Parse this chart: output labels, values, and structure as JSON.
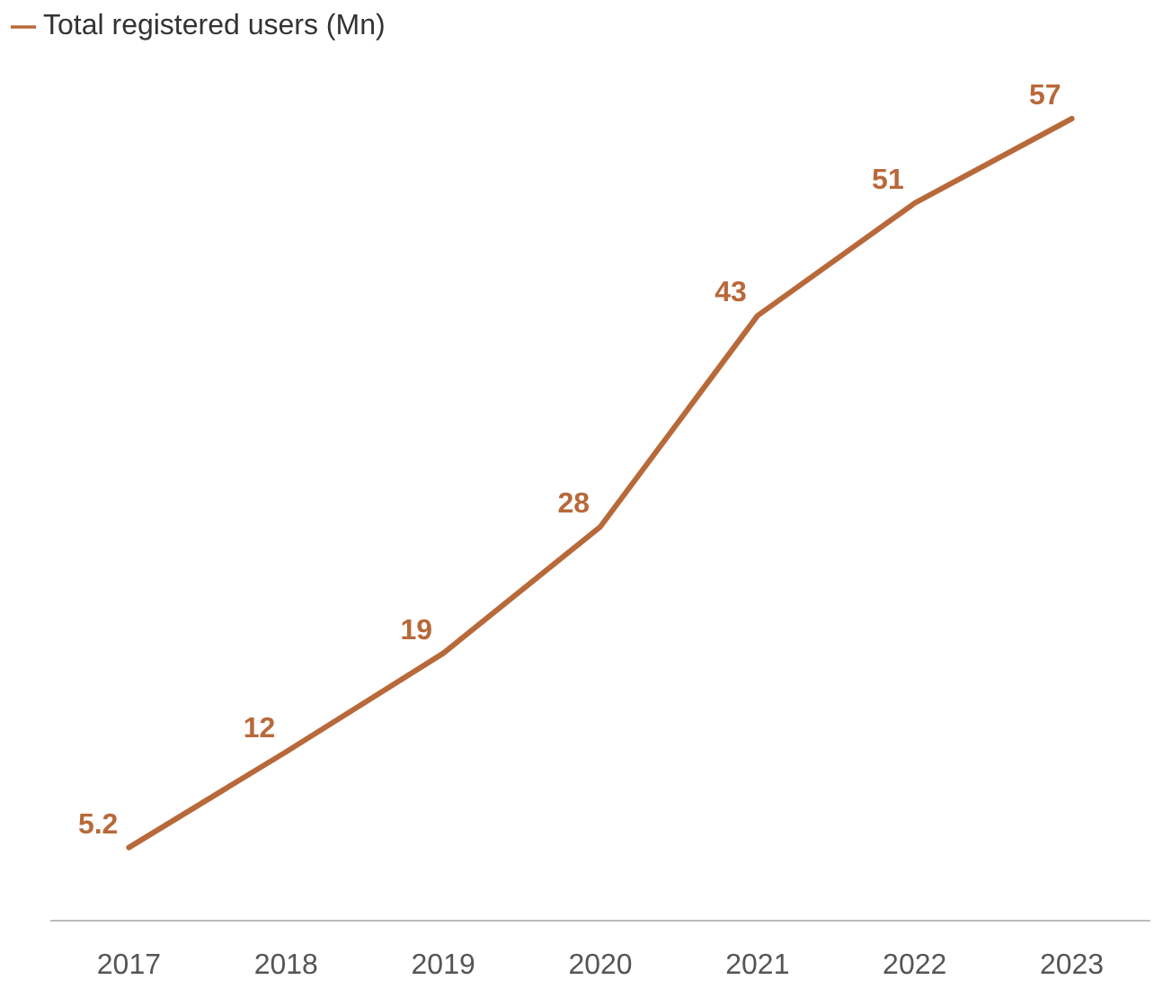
{
  "chart_data": {
    "type": "line",
    "categories": [
      "2017",
      "2018",
      "2019",
      "2020",
      "2021",
      "2022",
      "2023"
    ],
    "series": [
      {
        "name": "Total registered users (Mn)",
        "color": "#b8693a",
        "values": [
          5.2,
          12,
          19,
          28,
          43,
          51,
          57
        ]
      }
    ],
    "data_labels": true,
    "legend": "top left",
    "grid": false,
    "marker": "none",
    "line_style": "solid",
    "tick_labels": "x"
  }
}
